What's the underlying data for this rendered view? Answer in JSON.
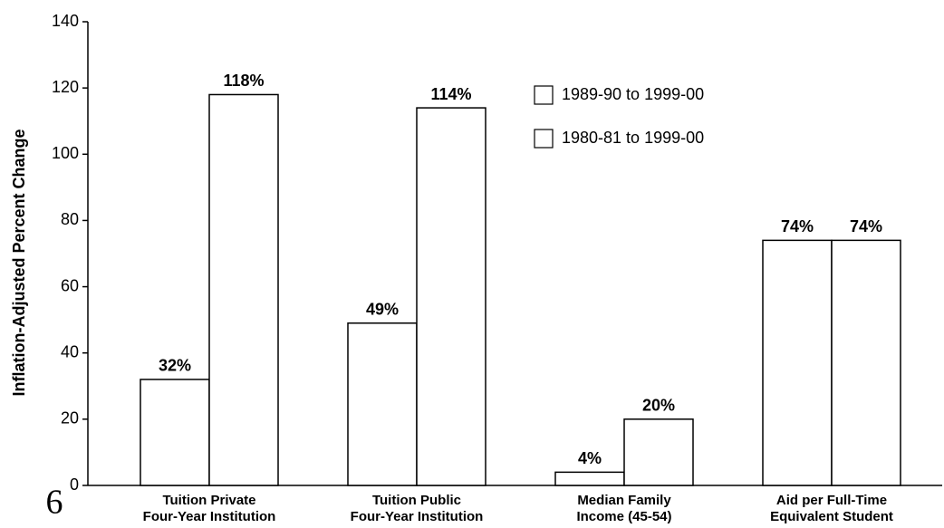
{
  "chart_data": {
    "type": "bar",
    "y_label": "Inflation-Adjusted Percent Change",
    "categories": [
      "Tuition Private\nFour-Year Institution",
      "Tuition Public\nFour-Year Institution",
      "Median Family\nIncome (45-54)",
      "Aid per Full-Time\nEquivalent Student"
    ],
    "series": [
      {
        "name": "1989-90 to 1999-00",
        "color": "#ffffff",
        "values": [
          32,
          49,
          4,
          74
        ],
        "value_labels": [
          "32%",
          "49%",
          "4%",
          "74%"
        ]
      },
      {
        "name": "1980-81 to 1999-00",
        "color": "#ffffff",
        "values": [
          118,
          114,
          20,
          74
        ],
        "value_labels": [
          "118%",
          "114%",
          "20%",
          "74%"
        ]
      }
    ],
    "ylim": [
      0,
      140
    ],
    "yticks": [
      0,
      20,
      40,
      60,
      80,
      100,
      120,
      140
    ],
    "page_number": "6"
  }
}
